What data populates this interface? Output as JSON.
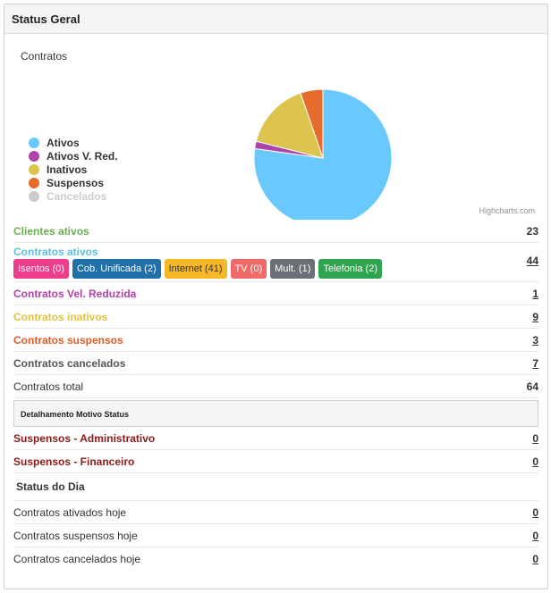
{
  "panel": {
    "title": "Status Geral"
  },
  "chart": {
    "credits": "Highcharts.com"
  },
  "chart_data": {
    "type": "pie",
    "title": "Contratos",
    "categories": [
      "Ativos",
      "Ativos V. Red.",
      "Inativos",
      "Suspensos",
      "Cancelados"
    ],
    "values": [
      44,
      1,
      9,
      3,
      7
    ],
    "visible": [
      true,
      true,
      true,
      true,
      false
    ],
    "colors": [
      "#6ac9fc",
      "#b041a8",
      "#dcc44e",
      "#e66c2c",
      "#cccccc"
    ],
    "legend_position": "left"
  },
  "rows": {
    "clientes_ativos": {
      "label": "Clientes ativos",
      "value": "23"
    },
    "contratos_ativos": {
      "label": "Contratos ativos",
      "value": "44",
      "badges": [
        {
          "label": "Isentos (0)"
        },
        {
          "label": "Cob. Unificada (2)"
        },
        {
          "label": "Internet (41)"
        },
        {
          "label": "TV (0)"
        },
        {
          "label": "Mult. (1)"
        },
        {
          "label": "Telefonia (2)"
        }
      ]
    },
    "vel_reduzida": {
      "label": "Contratos Vel. Reduzida",
      "value": "1"
    },
    "inativos": {
      "label": "Contratos inativos",
      "value": "9"
    },
    "suspensos": {
      "label": "Contratos suspensos",
      "value": "3"
    },
    "cancelados": {
      "label": "Contratos cancelados",
      "value": "7"
    },
    "total": {
      "label": "Contratos total",
      "value": "64"
    }
  },
  "detalhamento": {
    "title": "Detalhamento Motivo Status",
    "admin": {
      "label": "Suspensos - Administrativo",
      "value": "0"
    },
    "financeiro": {
      "label": "Suspensos - Financeiro",
      "value": "0"
    }
  },
  "status_dia": {
    "title": "Status do Dia",
    "ativados": {
      "label": "Contratos ativados hoje",
      "value": "0"
    },
    "suspensos": {
      "label": "Contratos suspensos hoje",
      "value": "0"
    },
    "cancelados": {
      "label": "Contratos cancelados hoje",
      "value": "0"
    }
  }
}
